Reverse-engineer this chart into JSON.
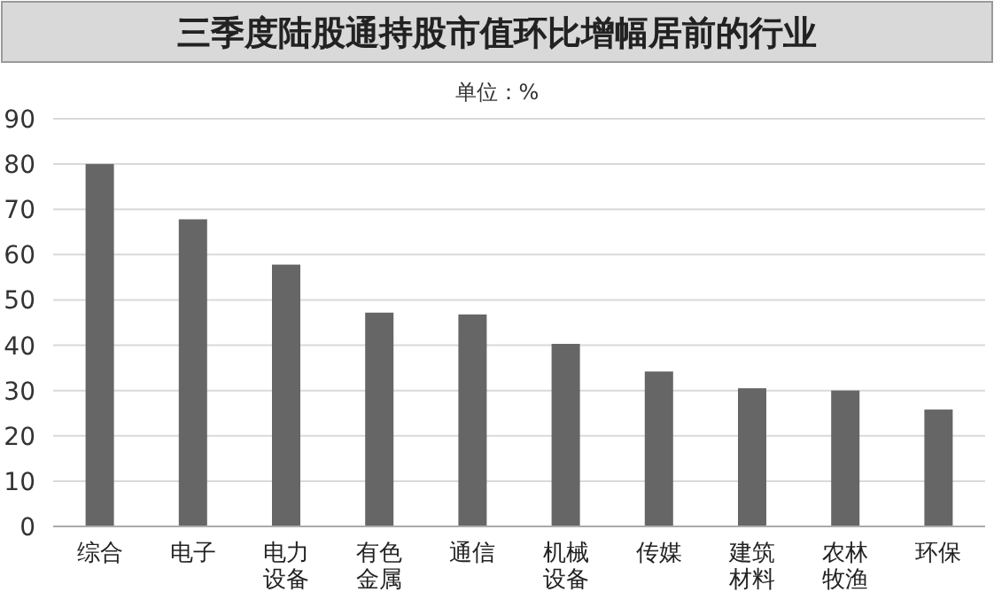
{
  "chart_data": {
    "type": "bar",
    "title": "三季度陆股通持股市值环比增幅居前的行业",
    "subtitle": "单位：%",
    "categories": [
      "综合",
      "电子",
      "电力设备",
      "有色金属",
      "通信",
      "机械设备",
      "传媒",
      "建筑材料",
      "农林牧渔",
      "环保"
    ],
    "values": [
      80,
      67.8,
      57.8,
      47.2,
      46.8,
      40.3,
      34.2,
      30.5,
      30,
      25.8
    ],
    "color": "#666666",
    "ylim": [
      0,
      90
    ],
    "yticks": [
      0,
      10,
      20,
      30,
      40,
      50,
      60,
      70,
      80,
      90
    ],
    "grid": "y"
  }
}
